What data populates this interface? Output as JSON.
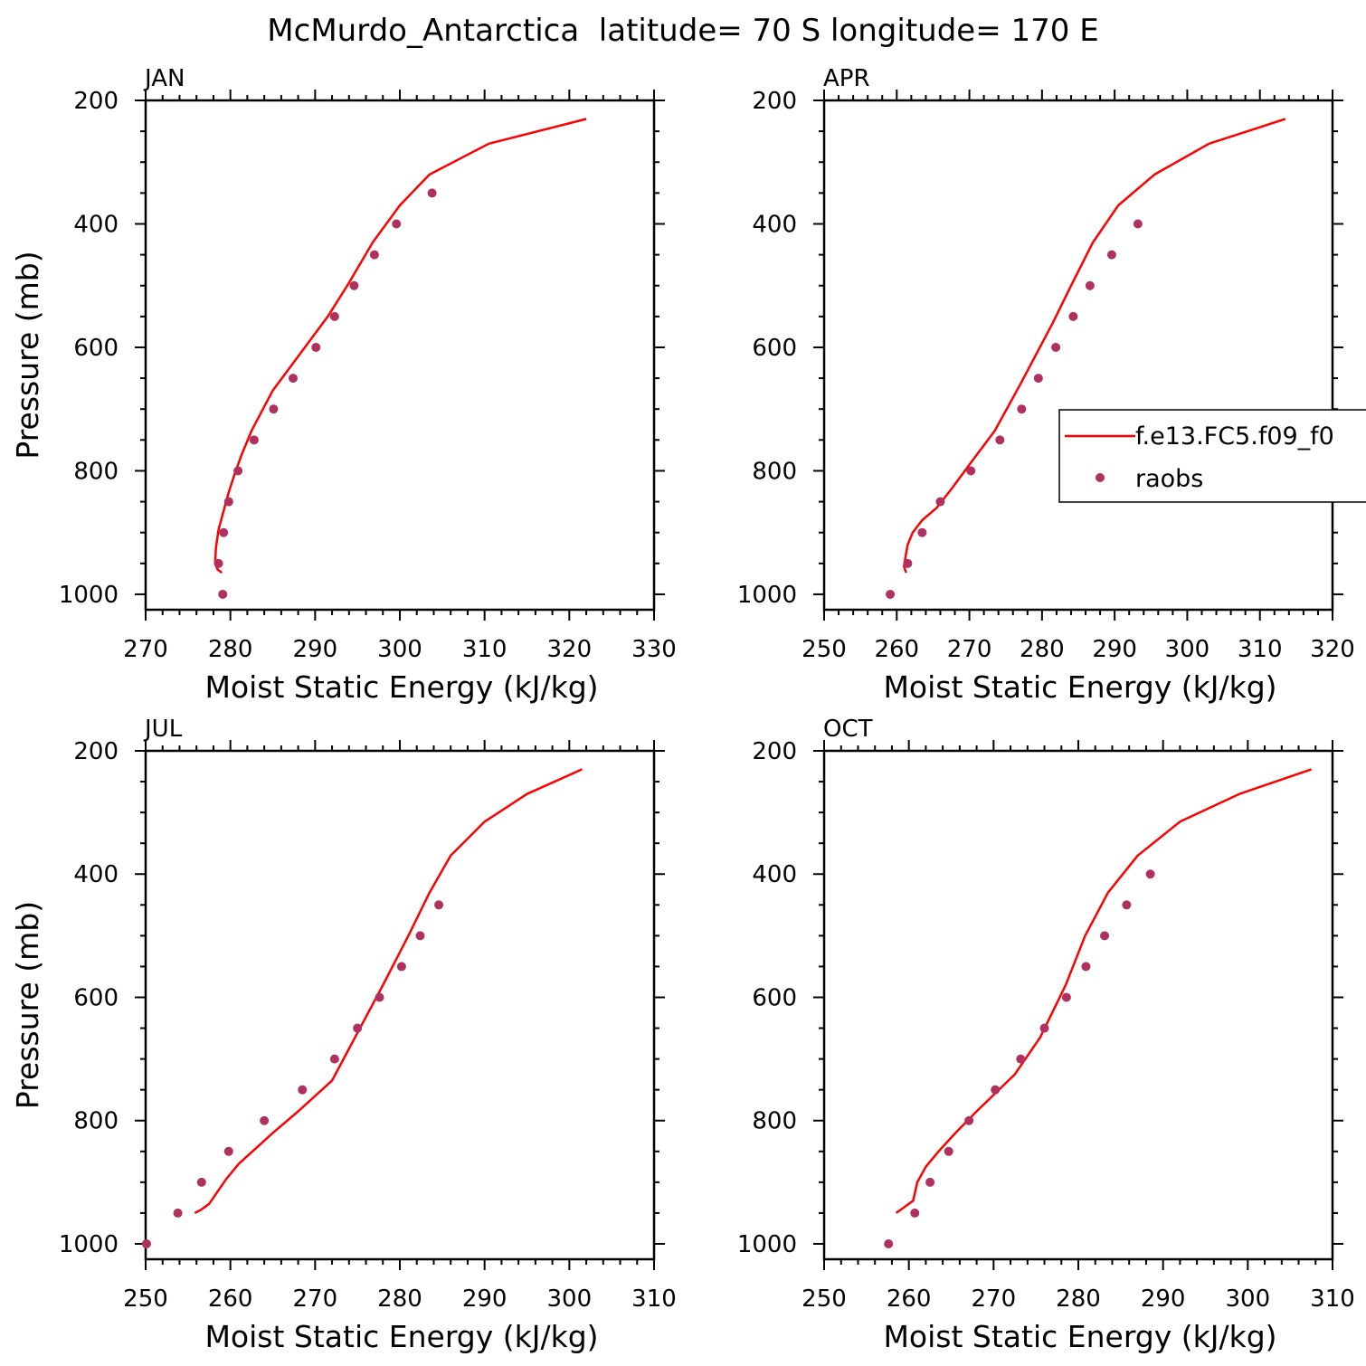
{
  "figure": {
    "title": "McMurdo_Antarctica  latitude= 70 S longitude= 170 E"
  },
  "colors": {
    "model_line": "#ff0000",
    "obs_marker": "#b03060",
    "axes": "#000000",
    "background": "#ffffff"
  },
  "legend": {
    "placement": "right edge of APR panel",
    "entries": [
      {
        "label": "f.e13.FC5.f09_f0",
        "kind": "line"
      },
      {
        "label": "raobs",
        "kind": "marker"
      }
    ]
  },
  "chart_data": [
    {
      "type": "line",
      "title": "JAN",
      "xlabel": "Moist Static Energy (kJ/kg)",
      "ylabel": "Pressure (mb)",
      "xlim": [
        270,
        330
      ],
      "ylim": [
        1025,
        200
      ],
      "y_inverted": true,
      "xticks": [
        270,
        280,
        290,
        300,
        310,
        320,
        330
      ],
      "yticks": [
        200,
        400,
        600,
        800,
        1000
      ],
      "series": [
        {
          "name": "f.e13.FC5.f09_f0",
          "x": [
            322.0,
            310.5,
            303.5,
            300.0,
            296.8,
            293.8,
            291.5,
            285.0,
            282.5,
            281.3,
            280.5,
            279.8,
            279.2,
            278.6,
            278.3,
            278.2,
            278.5,
            279.0
          ],
          "y": [
            230,
            270,
            320,
            370,
            430,
            500,
            550,
            670,
            735,
            775,
            805,
            835,
            865,
            895,
            925,
            950,
            960,
            965
          ]
        },
        {
          "name": "raobs",
          "x": [
            303.8,
            299.6,
            297.0,
            294.6,
            292.3,
            290.1,
            287.4,
            285.1,
            282.8,
            280.9,
            279.8,
            279.2,
            278.6,
            279.1
          ],
          "y": [
            350,
            400,
            450,
            500,
            550,
            600,
            650,
            700,
            750,
            800,
            850,
            900,
            950,
            1000
          ]
        }
      ]
    },
    {
      "type": "line",
      "title": "APR",
      "xlabel": "Moist Static Energy (kJ/kg)",
      "ylabel": "",
      "xlim": [
        250,
        320
      ],
      "ylim": [
        1025,
        200
      ],
      "y_inverted": true,
      "xticks": [
        250,
        260,
        270,
        280,
        290,
        300,
        310,
        320
      ],
      "yticks": [
        200,
        400,
        600,
        800,
        1000
      ],
      "series": [
        {
          "name": "f.e13.FC5.f09_f0",
          "x": [
            313.5,
            303.0,
            295.5,
            290.5,
            287.0,
            284.0,
            281.5,
            277.0,
            273.5,
            270.0,
            267.5,
            265.5,
            263.5,
            262.2,
            261.5,
            261.2,
            261.0,
            261.3
          ],
          "y": [
            230,
            270,
            320,
            370,
            430,
            500,
            560,
            660,
            735,
            790,
            830,
            860,
            880,
            900,
            920,
            940,
            955,
            965
          ]
        },
        {
          "name": "raobs",
          "x": [
            293.2,
            289.6,
            286.6,
            284.3,
            281.9,
            279.5,
            277.2,
            274.2,
            270.2,
            266.0,
            263.5,
            261.5,
            259.1
          ],
          "y": [
            400,
            450,
            500,
            550,
            600,
            650,
            700,
            750,
            800,
            850,
            900,
            950,
            1000
          ]
        }
      ]
    },
    {
      "type": "line",
      "title": "JUL",
      "xlabel": "Moist Static Energy (kJ/kg)",
      "ylabel": "Pressure (mb)",
      "xlim": [
        250,
        310
      ],
      "ylim": [
        1025,
        200
      ],
      "y_inverted": true,
      "xticks": [
        250,
        260,
        270,
        280,
        290,
        300,
        310
      ],
      "yticks": [
        200,
        400,
        600,
        800,
        1000
      ],
      "series": [
        {
          "name": "f.e13.FC5.f09_f0",
          "x": [
            301.5,
            295.0,
            290.0,
            286.0,
            283.5,
            281.0,
            278.0,
            272.0,
            268.0,
            265.0,
            263.0,
            261.0,
            259.5,
            258.5,
            257.5,
            256.5,
            255.8
          ],
          "y": [
            230,
            270,
            315,
            370,
            430,
            500,
            580,
            735,
            785,
            820,
            845,
            870,
            895,
            915,
            935,
            945,
            950
          ]
        },
        {
          "name": "raobs",
          "x": [
            284.6,
            282.4,
            280.2,
            277.6,
            275.0,
            272.3,
            268.5,
            264.0,
            259.8,
            256.6,
            253.8,
            250.1
          ],
          "y": [
            450,
            500,
            550,
            600,
            650,
            700,
            750,
            800,
            850,
            900,
            950,
            1000
          ]
        }
      ]
    },
    {
      "type": "line",
      "title": "OCT",
      "xlabel": "Moist Static Energy (kJ/kg)",
      "ylabel": "",
      "xlim": [
        250,
        310
      ],
      "ylim": [
        1025,
        200
      ],
      "y_inverted": true,
      "xticks": [
        250,
        260,
        270,
        280,
        290,
        300,
        310
      ],
      "yticks": [
        200,
        400,
        600,
        800,
        1000
      ],
      "series": [
        {
          "name": "f.e13.FC5.f09_f0",
          "x": [
            307.5,
            299.0,
            292.0,
            287.0,
            283.5,
            280.8,
            278.5,
            275.5,
            272.5,
            268.0,
            265.5,
            263.5,
            262.0,
            261.0,
            260.5,
            259.5,
            258.5
          ],
          "y": [
            230,
            270,
            315,
            370,
            430,
            500,
            580,
            665,
            725,
            785,
            820,
            850,
            875,
            900,
            930,
            940,
            950
          ]
        },
        {
          "name": "raobs",
          "x": [
            288.5,
            285.7,
            283.1,
            280.9,
            278.6,
            276.0,
            273.2,
            270.2,
            267.1,
            264.7,
            262.5,
            260.7,
            257.6
          ],
          "y": [
            400,
            450,
            500,
            550,
            600,
            650,
            700,
            750,
            800,
            850,
            900,
            950,
            1000
          ]
        }
      ]
    }
  ]
}
